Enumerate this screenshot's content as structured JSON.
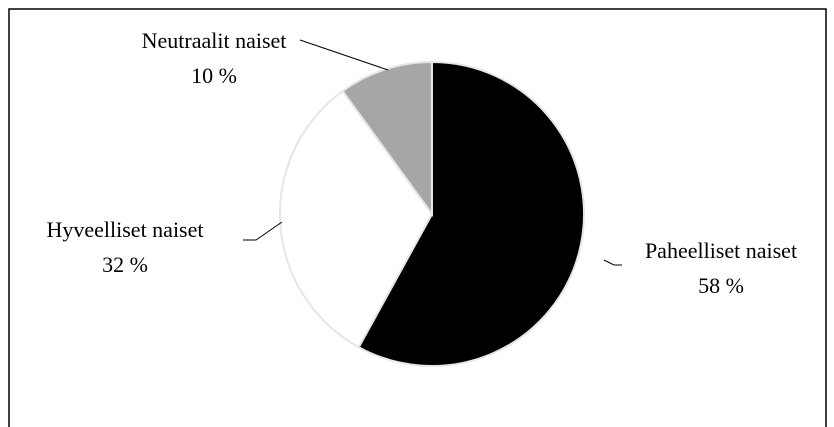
{
  "chart_data": {
    "type": "pie",
    "categories": [
      "Paheelliset naiset",
      "Hyveelliset naiset",
      "Neutraalit naiset"
    ],
    "values": [
      58,
      32,
      10
    ],
    "value_labels": [
      "58 %",
      "32 %",
      "10 %"
    ],
    "colors": [
      "#000000",
      "#ffffff",
      "#a6a6a6"
    ]
  }
}
